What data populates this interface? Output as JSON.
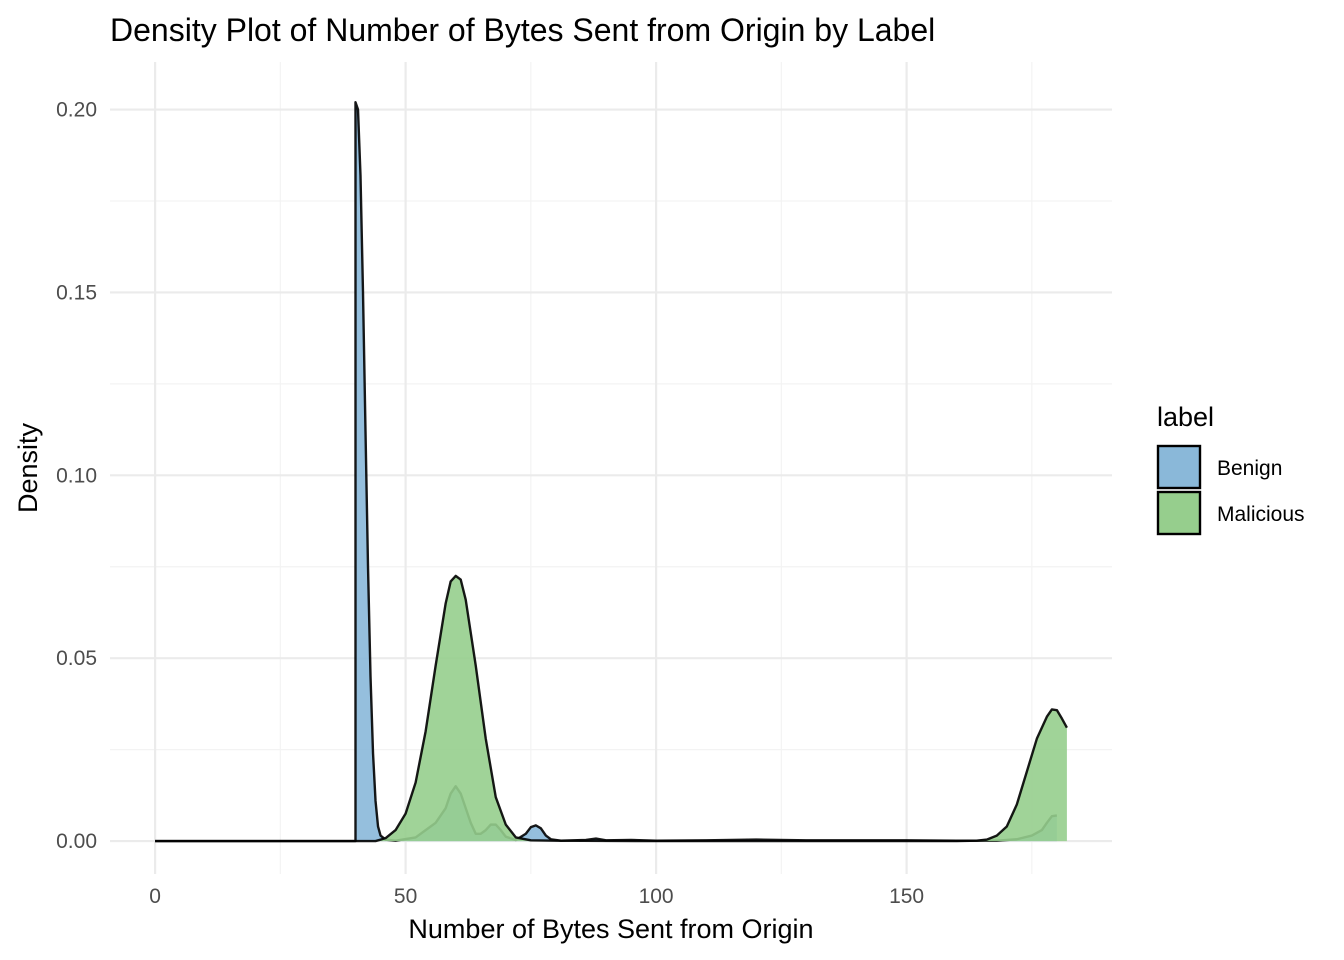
{
  "chart_data": {
    "type": "density",
    "title": "Density Plot of Number of Bytes Sent from Origin by Label",
    "xlabel": "Number of Bytes Sent from Origin",
    "ylabel": "Density",
    "xlim": [
      -9,
      191
    ],
    "ylim": [
      -0.009,
      0.213
    ],
    "x_ticks": [
      0,
      50,
      100,
      150
    ],
    "x_tick_labels": [
      "0",
      "50",
      "100",
      "150"
    ],
    "y_ticks": [
      0,
      0.05,
      0.1,
      0.15,
      0.2
    ],
    "y_tick_labels": [
      "0.00",
      "0.05",
      "0.10",
      "0.15",
      "0.20"
    ],
    "grid": true,
    "legend": {
      "title": "label",
      "position": "right"
    },
    "series": [
      {
        "name": "Benign",
        "color": "#8ab8d9",
        "points": [
          [
            0,
            0
          ],
          [
            40,
            0
          ],
          [
            40,
            0.202
          ],
          [
            40.5,
            0.2
          ],
          [
            41,
            0.182
          ],
          [
            41.5,
            0.15
          ],
          [
            42,
            0.112
          ],
          [
            42.5,
            0.075
          ],
          [
            43,
            0.045
          ],
          [
            43.5,
            0.024
          ],
          [
            44,
            0.011
          ],
          [
            44.5,
            0.004
          ],
          [
            45,
            0.0015
          ],
          [
            46,
            0.0004
          ],
          [
            48,
            0.0001
          ],
          [
            52,
            0.001
          ],
          [
            54,
            0.003
          ],
          [
            56,
            0.005
          ],
          [
            58,
            0.009
          ],
          [
            59,
            0.013
          ],
          [
            60,
            0.015
          ],
          [
            61,
            0.013
          ],
          [
            62,
            0.009
          ],
          [
            63,
            0.005
          ],
          [
            64,
            0.002
          ],
          [
            65,
            0.002
          ],
          [
            66,
            0.003
          ],
          [
            67,
            0.0045
          ],
          [
            68,
            0.0045
          ],
          [
            69,
            0.003
          ],
          [
            70,
            0.0012
          ],
          [
            72,
            0.0003
          ],
          [
            74,
            0.002
          ],
          [
            75,
            0.0038
          ],
          [
            76,
            0.0043
          ],
          [
            77,
            0.0035
          ],
          [
            78,
            0.0015
          ],
          [
            79,
            0.0005
          ],
          [
            81,
            0.0001
          ],
          [
            86,
            0.0003
          ],
          [
            88,
            0.0007
          ],
          [
            90,
            0.0002
          ],
          [
            95,
            0.0003
          ],
          [
            100,
            0.0001
          ],
          [
            110,
            0.0002
          ],
          [
            120,
            0.0004
          ],
          [
            130,
            0.0002
          ],
          [
            140,
            0.0002
          ],
          [
            150,
            0.0002
          ],
          [
            160,
            0.0001
          ],
          [
            168,
            0.0001
          ],
          [
            172,
            0.0005
          ],
          [
            175,
            0.0015
          ],
          [
            177,
            0.003
          ],
          [
            178,
            0.005
          ],
          [
            179,
            0.0068
          ],
          [
            180,
            0.007
          ],
          [
            180,
            0
          ]
        ]
      },
      {
        "name": "Malicious",
        "color": "#96ce8d",
        "points": [
          [
            0,
            0
          ],
          [
            44,
            0
          ],
          [
            46,
            0.0008
          ],
          [
            48,
            0.003
          ],
          [
            50,
            0.0075
          ],
          [
            52,
            0.016
          ],
          [
            54,
            0.03
          ],
          [
            56,
            0.048
          ],
          [
            58,
            0.065
          ],
          [
            59,
            0.071
          ],
          [
            60,
            0.0725
          ],
          [
            61,
            0.0715
          ],
          [
            62,
            0.066
          ],
          [
            64,
            0.048
          ],
          [
            66,
            0.028
          ],
          [
            68,
            0.012
          ],
          [
            70,
            0.0045
          ],
          [
            72,
            0.001
          ],
          [
            75,
            0.0002
          ],
          [
            80,
            0.0001
          ],
          [
            100,
            0
          ],
          [
            120,
            0
          ],
          [
            140,
            0
          ],
          [
            160,
            0
          ],
          [
            164,
            0.0001
          ],
          [
            166,
            0.0004
          ],
          [
            168,
            0.0015
          ],
          [
            170,
            0.004
          ],
          [
            172,
            0.01
          ],
          [
            174,
            0.019
          ],
          [
            176,
            0.028
          ],
          [
            178,
            0.034
          ],
          [
            179,
            0.036
          ],
          [
            180,
            0.0358
          ],
          [
            181,
            0.0335
          ],
          [
            182,
            0.031
          ],
          [
            182,
            0
          ]
        ]
      }
    ]
  }
}
